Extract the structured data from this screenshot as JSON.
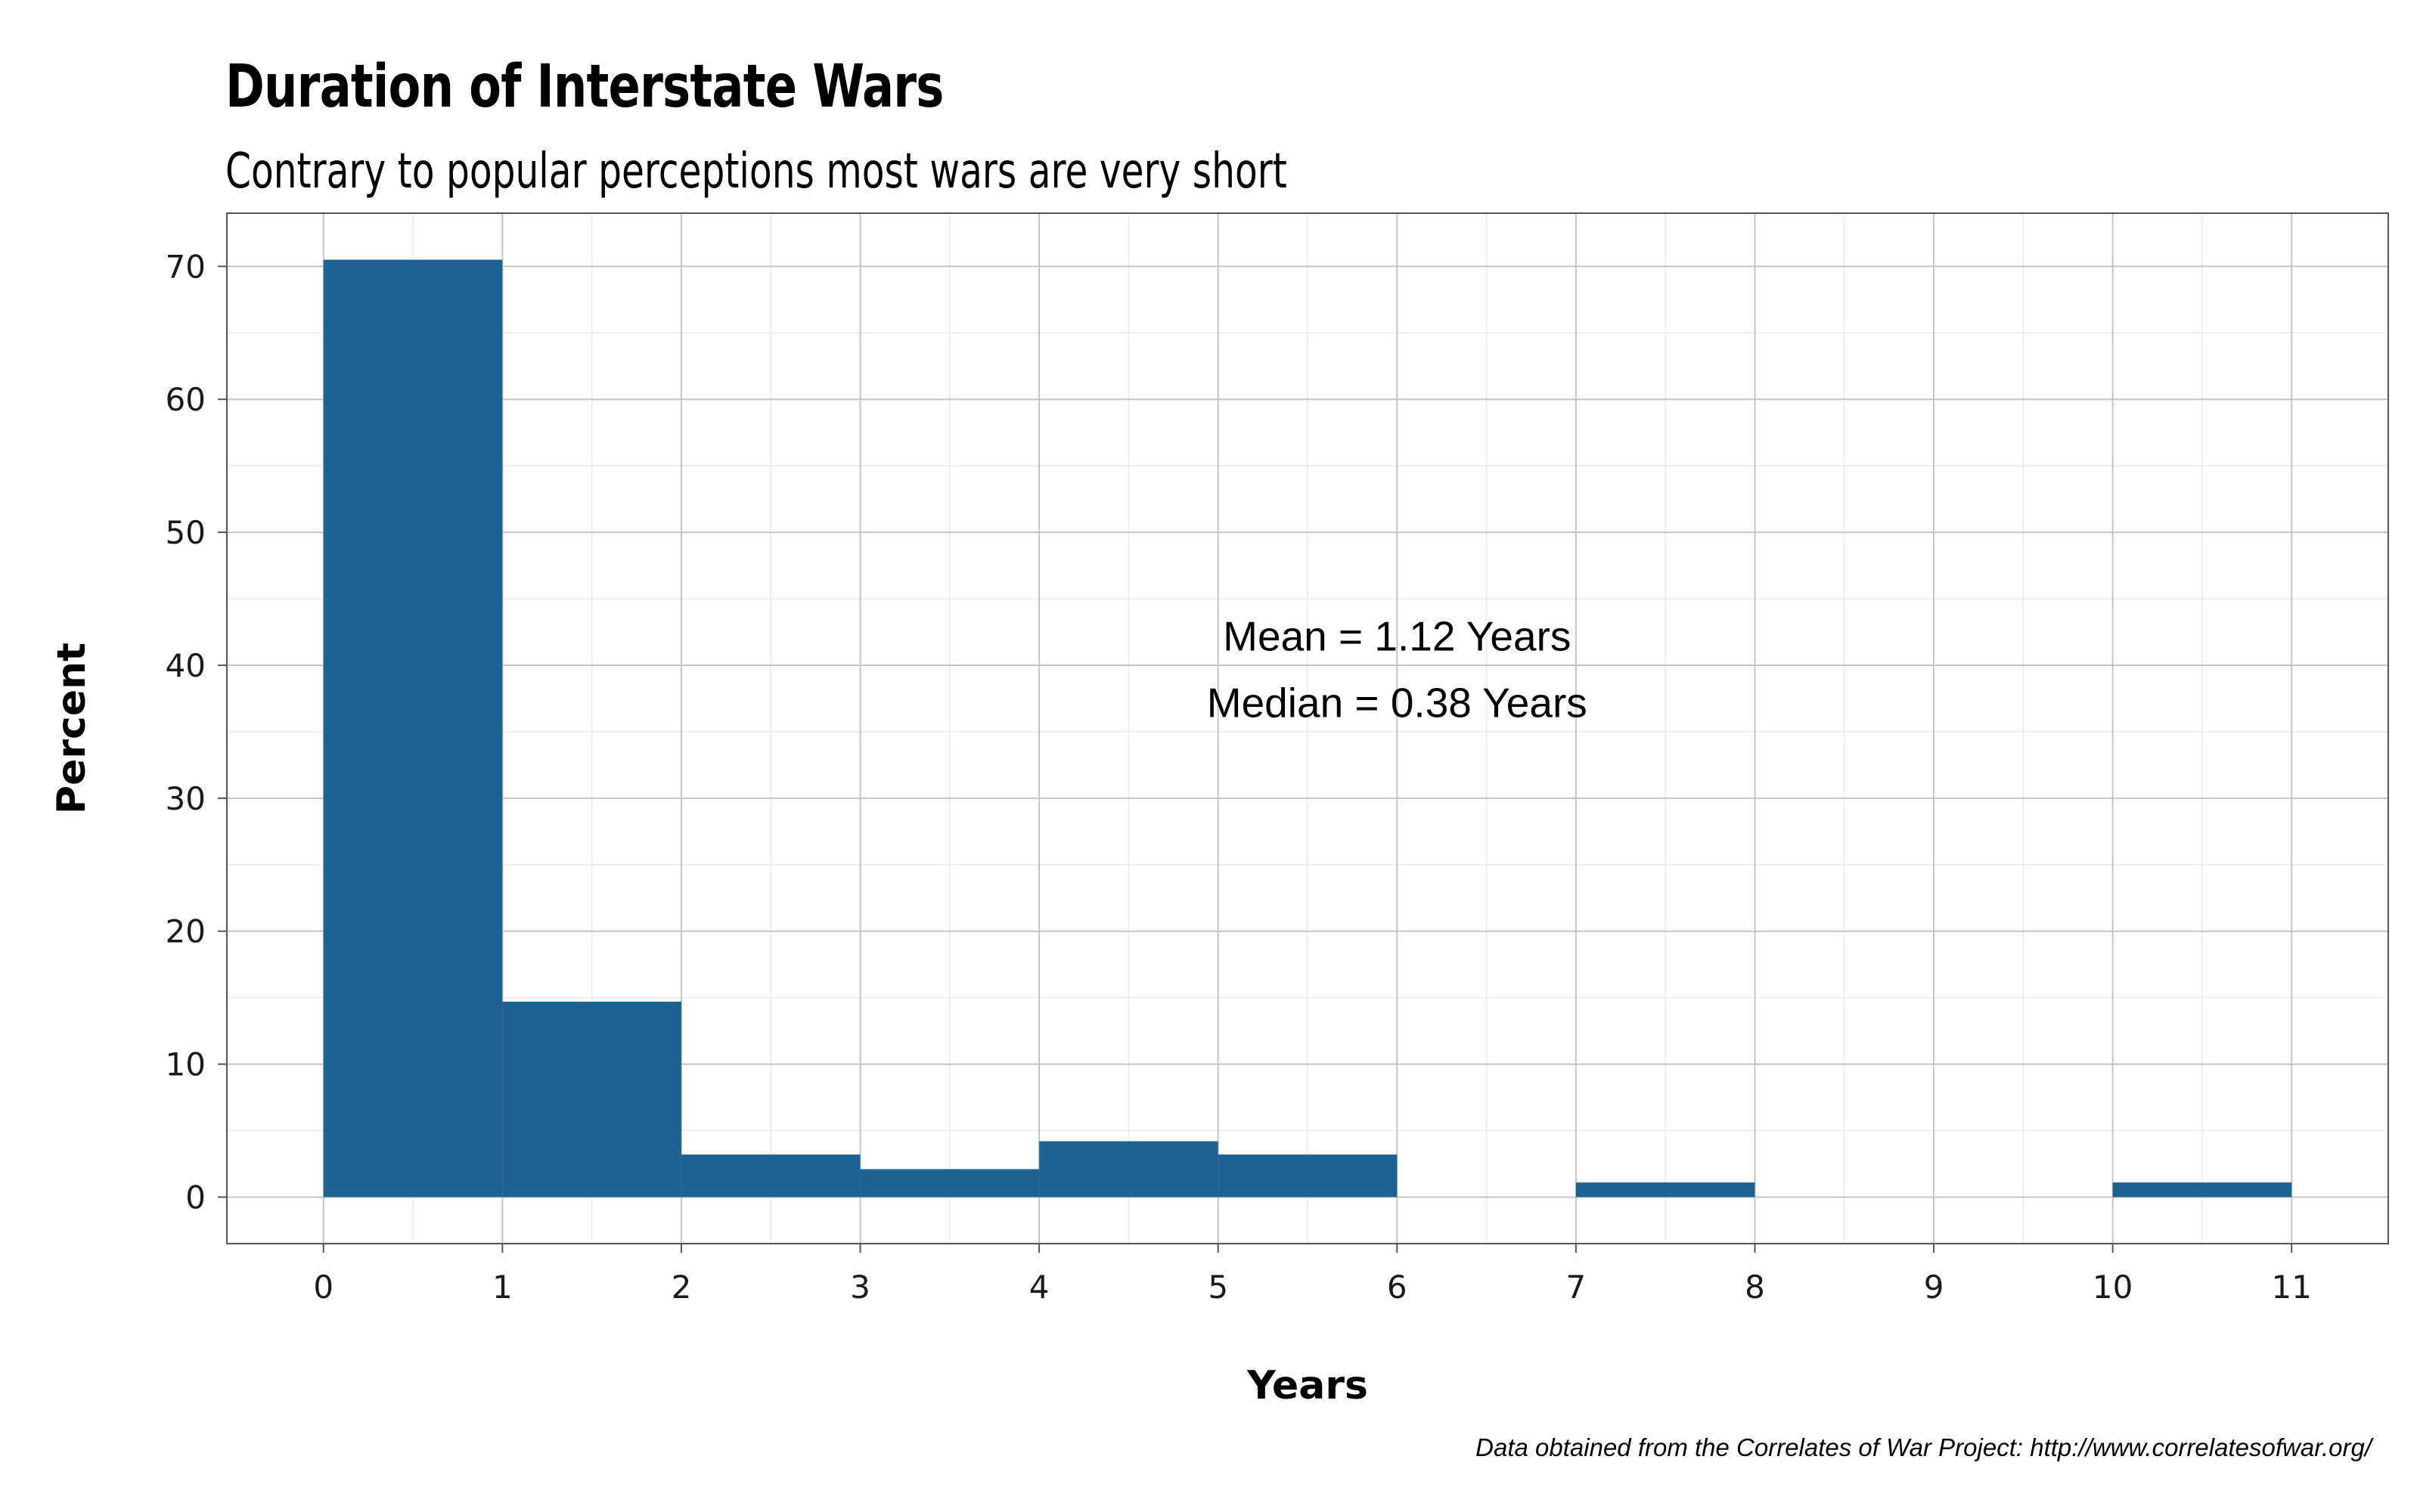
{
  "chart_data": {
    "type": "bar",
    "title": "Duration of Interstate Wars",
    "subtitle": "Contrary to popular perceptions most wars are very short",
    "xlabel": "Years",
    "ylabel": "Percent",
    "caption": "Data obtained from the Correlates of War Project: http://www.correlatesofwar.org/",
    "bins": [
      {
        "x0": 0,
        "x1": 1,
        "value": 70.5
      },
      {
        "x0": 1,
        "x1": 2,
        "value": 14.7
      },
      {
        "x0": 2,
        "x1": 3,
        "value": 3.2
      },
      {
        "x0": 3,
        "x1": 4,
        "value": 2.1
      },
      {
        "x0": 4,
        "x1": 5,
        "value": 4.2
      },
      {
        "x0": 5,
        "x1": 6,
        "value": 3.2
      },
      {
        "x0": 6,
        "x1": 7,
        "value": 0
      },
      {
        "x0": 7,
        "x1": 8,
        "value": 1.1
      },
      {
        "x0": 8,
        "x1": 9,
        "value": 0
      },
      {
        "x0": 9,
        "x1": 10,
        "value": 0
      },
      {
        "x0": 10,
        "x1": 11,
        "value": 1.1
      }
    ],
    "xlim": [
      -0.54,
      11.54
    ],
    "ylim": [
      -3.5,
      74
    ],
    "xticks": [
      "0",
      "1",
      "2",
      "3",
      "4",
      "5",
      "6",
      "7",
      "8",
      "9",
      "10",
      "11"
    ],
    "yticks": [
      "0",
      "10",
      "20",
      "30",
      "40",
      "50",
      "60",
      "70"
    ],
    "annotations": [
      "Mean = 1.12 Years",
      "Median = 0.38 Years"
    ],
    "annotation_position": [
      6,
      38.5
    ],
    "bar_color": "#1c6391",
    "grid": true
  }
}
